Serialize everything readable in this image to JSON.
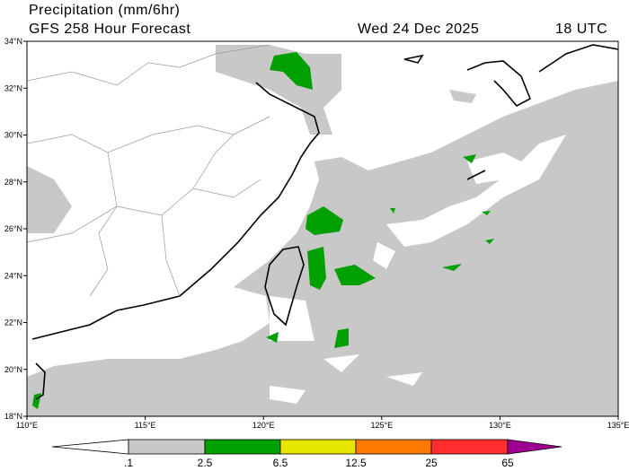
{
  "header": {
    "title": "Precipitation (mm/6hr)",
    "subtitle": "GFS 258 Hour Forecast",
    "date": "Wed 24 Dec 2025",
    "time": "18 UTC"
  },
  "axes": {
    "lat_labels": [
      "34°N",
      "32°N",
      "30°N",
      "28°N",
      "26°N",
      "24°N",
      "22°N",
      "20°N",
      "18°N"
    ],
    "lon_labels": [
      "110°E",
      "115°E",
      "120°E",
      "125°E",
      "130°E",
      "135°E"
    ]
  },
  "legend": {
    "labels": [
      ".1",
      "2.5",
      "6.5",
      "12.5",
      "25",
      "65"
    ]
  }
}
